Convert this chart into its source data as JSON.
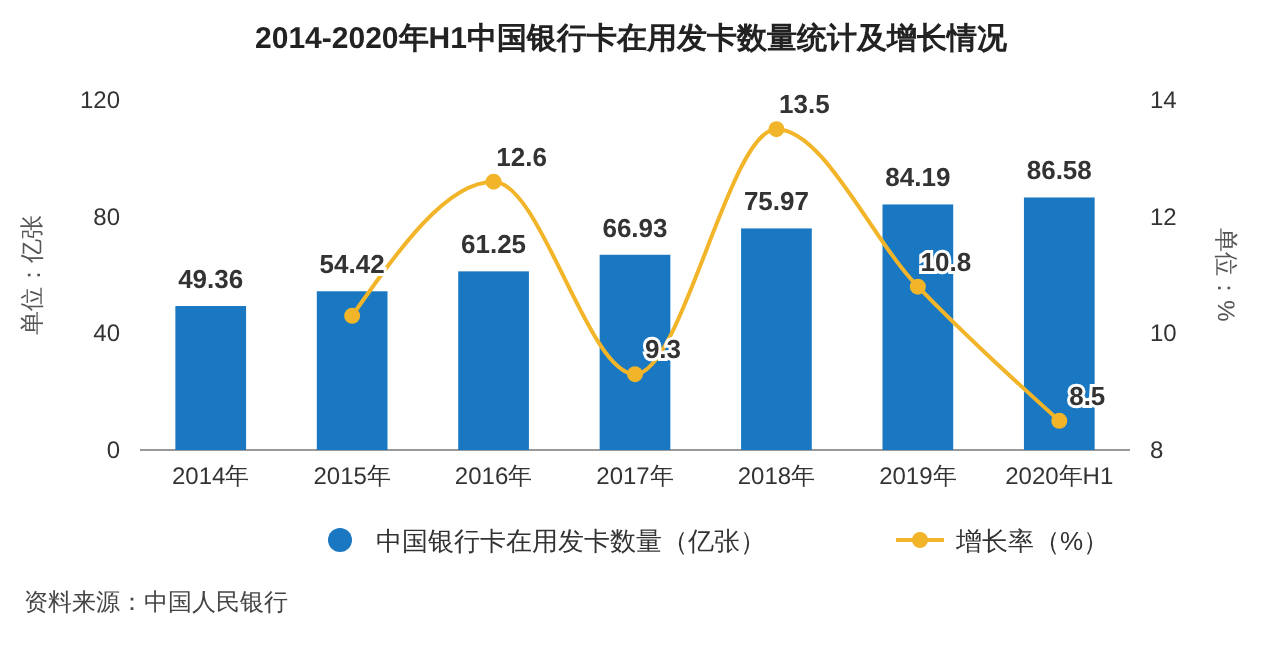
{
  "chart_data": {
    "type": "bar",
    "title": "2014-2020年H1中国银行卡在用发卡数量统计及增长情况",
    "categories": [
      "2014年",
      "2015年",
      "2016年",
      "2017年",
      "2018年",
      "2019年",
      "2020年H1"
    ],
    "series": [
      {
        "name": "中国银行卡在用发卡数量（亿张）",
        "color": "#1a78c2",
        "values": [
          49.36,
          54.42,
          61.25,
          66.93,
          75.97,
          84.19,
          86.58
        ],
        "value_labels": [
          "49.36",
          "54.42",
          "61.25",
          "66.93",
          "75.97",
          "84.19",
          "86.58"
        ]
      },
      {
        "name": "增长率（%）",
        "type": "line",
        "axis": "y2",
        "color": "#f2b52a",
        "values": [
          null,
          10.3,
          12.6,
          9.3,
          13.5,
          10.8,
          8.5
        ],
        "value_labels": [
          null,
          null,
          "12.6",
          "9.3",
          "13.5",
          "10.8",
          "8.5"
        ]
      }
    ],
    "ylabel": "单位：亿张",
    "y2label": "单位：%",
    "ylim": [
      0,
      120
    ],
    "yticks": [
      0,
      40,
      80,
      120
    ],
    "y2lim": [
      8,
      14
    ],
    "y2ticks": [
      8,
      10,
      12,
      14
    ],
    "marker": "circle",
    "legend": "bottom",
    "annotations": [
      "资料来源：中国人民银行"
    ]
  }
}
